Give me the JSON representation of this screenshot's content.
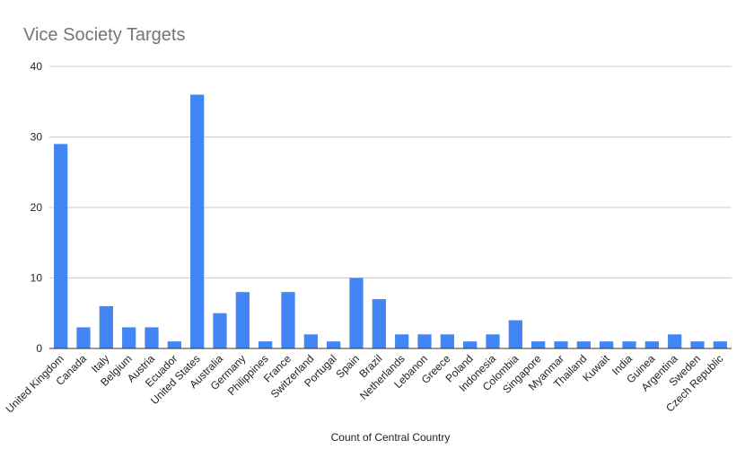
{
  "chart_data": {
    "type": "bar",
    "title": "Vice Society Targets",
    "xlabel": "Count of Central Country",
    "ylabel": "",
    "ylim": [
      0,
      40
    ],
    "yticks": [
      0,
      10,
      20,
      30,
      40
    ],
    "grid": true,
    "legend": "none",
    "bar_color": "#4285f4",
    "categories": [
      "United Kingdom",
      "Canada",
      "Italy",
      "Belgium",
      "Austria",
      "Ecuador",
      "United States",
      "Australia",
      "Germany",
      "Philippines",
      "France",
      "Switzerland",
      "Portugal",
      "Spain",
      "Brazil",
      "Netherlands",
      "Lebanon",
      "Greece",
      "Poland",
      "Indonesia",
      "Colombia",
      "Singapore",
      "Myanmar",
      "Thailand",
      "Kuwait",
      "India",
      "Guinea",
      "Argentina",
      "Sweden",
      "Czech Republic"
    ],
    "values": [
      29,
      3,
      6,
      3,
      3,
      1,
      36,
      5,
      8,
      1,
      8,
      2,
      1,
      10,
      7,
      2,
      2,
      2,
      1,
      2,
      4,
      1,
      1,
      1,
      1,
      1,
      1,
      2,
      1,
      1
    ]
  }
}
